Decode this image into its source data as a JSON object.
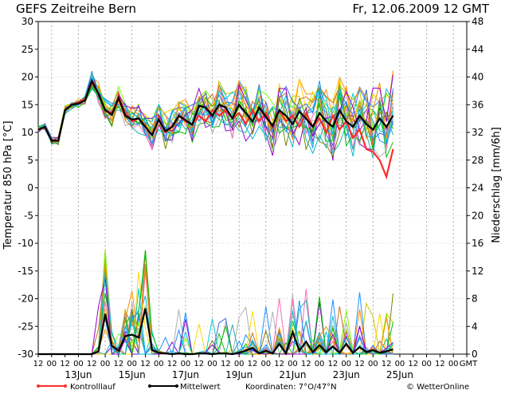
{
  "header": {
    "title": "GEFS Zeitreihe Bern",
    "datetime": "Fr, 12.06.2009 12 GMT"
  },
  "footer": {
    "legend_control": "Kontrolllauf",
    "legend_mean": "Mittelwert",
    "coordinates": "Koordinaten: 7°O/47°N",
    "credit": "© WetterOnline"
  },
  "colors": {
    "control": "#ff2a2a",
    "mean": "#000000",
    "members": [
      "#1e90ff",
      "#00c000",
      "#ff8c00",
      "#9400d3",
      "#00bcd4",
      "#c8c800",
      "#b0b0b0",
      "#ff69b4",
      "#808000",
      "#00ced1",
      "#ffd700",
      "#7cfc00",
      "#4169e1",
      "#d2691e",
      "#20b2aa"
    ]
  },
  "chart_data": {
    "type": "line",
    "title": "GEFS Zeitreihe Bern",
    "ylabel_left": "Temperatur 850 hPa [°C]",
    "ylabel_right": "Niederschlag [mm/6h]",
    "ylim_left": [
      -30,
      30
    ],
    "ylim_right": [
      0,
      48
    ],
    "yticks_left": [
      "30",
      "25",
      "20",
      "15",
      "10",
      "5",
      "0",
      "-5",
      "-10",
      "-15",
      "-20",
      "-25",
      "-30"
    ],
    "yticks_right": [
      "48",
      "44",
      "40",
      "36",
      "32",
      "28",
      "24",
      "20",
      "16",
      "12",
      "8",
      "4",
      "0"
    ],
    "x_hour_labels": [
      "12",
      "00",
      "12",
      "00",
      "12",
      "00",
      "12",
      "00",
      "12",
      "00",
      "12",
      "00",
      "12",
      "00",
      "12",
      "00",
      "12",
      "00",
      "12",
      "00",
      "12",
      "00",
      "12",
      "00",
      "12",
      "00",
      "12",
      "00",
      "12",
      "00",
      "12",
      "00",
      "GMT"
    ],
    "x_date_labels": [
      "13Jun",
      "15Jun",
      "17Jun",
      "19Jun",
      "21Jun",
      "23Jun",
      "25Jun"
    ],
    "time_step_hours": 6,
    "grid": true,
    "legend_position": "bottom",
    "series": [
      {
        "name": "Kontrolllauf",
        "axis": "temperature",
        "values": [
          10.5,
          11,
          8.5,
          8.5,
          14,
          15,
          15.5,
          16,
          19,
          17,
          14,
          13.5,
          16.5,
          13.5,
          12,
          12.5,
          11,
          9.5,
          12.5,
          10,
          11,
          13,
          12,
          11.5,
          13,
          12,
          14,
          13,
          14,
          12.5,
          13.5,
          11.5,
          14,
          12,
          13.5,
          11,
          14,
          12,
          13,
          11,
          13.5,
          11,
          12.5,
          10,
          13,
          10.5,
          12,
          9,
          10.5,
          7,
          6.5,
          5,
          2,
          7
        ]
      },
      {
        "name": "Mittelwert",
        "axis": "temperature",
        "values": [
          10.5,
          11,
          8.5,
          8.5,
          14,
          15,
          15.2,
          15.8,
          19.3,
          17,
          14,
          13.2,
          16.2,
          13,
          12.3,
          12.5,
          11,
          9.5,
          12.3,
          10.2,
          11,
          13,
          12.2,
          11.4,
          14.8,
          14.5,
          13,
          15,
          14.5,
          12.5,
          15,
          13.5,
          12,
          14.5,
          12.8,
          11.2,
          14,
          13,
          11.5,
          13.8,
          12.5,
          11,
          13.5,
          12,
          11,
          14,
          12,
          11,
          13,
          11.5,
          10.5,
          12.5,
          11,
          13
        ]
      },
      {
        "name": "Mittelwert",
        "axis": "precipitation",
        "values": [
          0,
          0,
          0,
          0,
          0,
          0,
          0,
          0,
          0,
          0.4,
          5.8,
          1.2,
          0.5,
          2.6,
          2.8,
          2.4,
          6.6,
          0.6,
          0.2,
          0.1,
          0,
          0.1,
          0,
          0,
          0.1,
          0.1,
          0,
          0.1,
          0.1,
          0,
          0.2,
          0.5,
          0.9,
          0.1,
          0.5,
          0.1,
          1.5,
          0.1,
          3.2,
          0.5,
          1.8,
          0.3,
          1.3,
          0.3,
          1.1,
          0.2,
          1.5,
          0.2,
          1,
          0.3,
          0.6,
          0.2,
          0.4,
          0.7
        ]
      }
    ]
  }
}
